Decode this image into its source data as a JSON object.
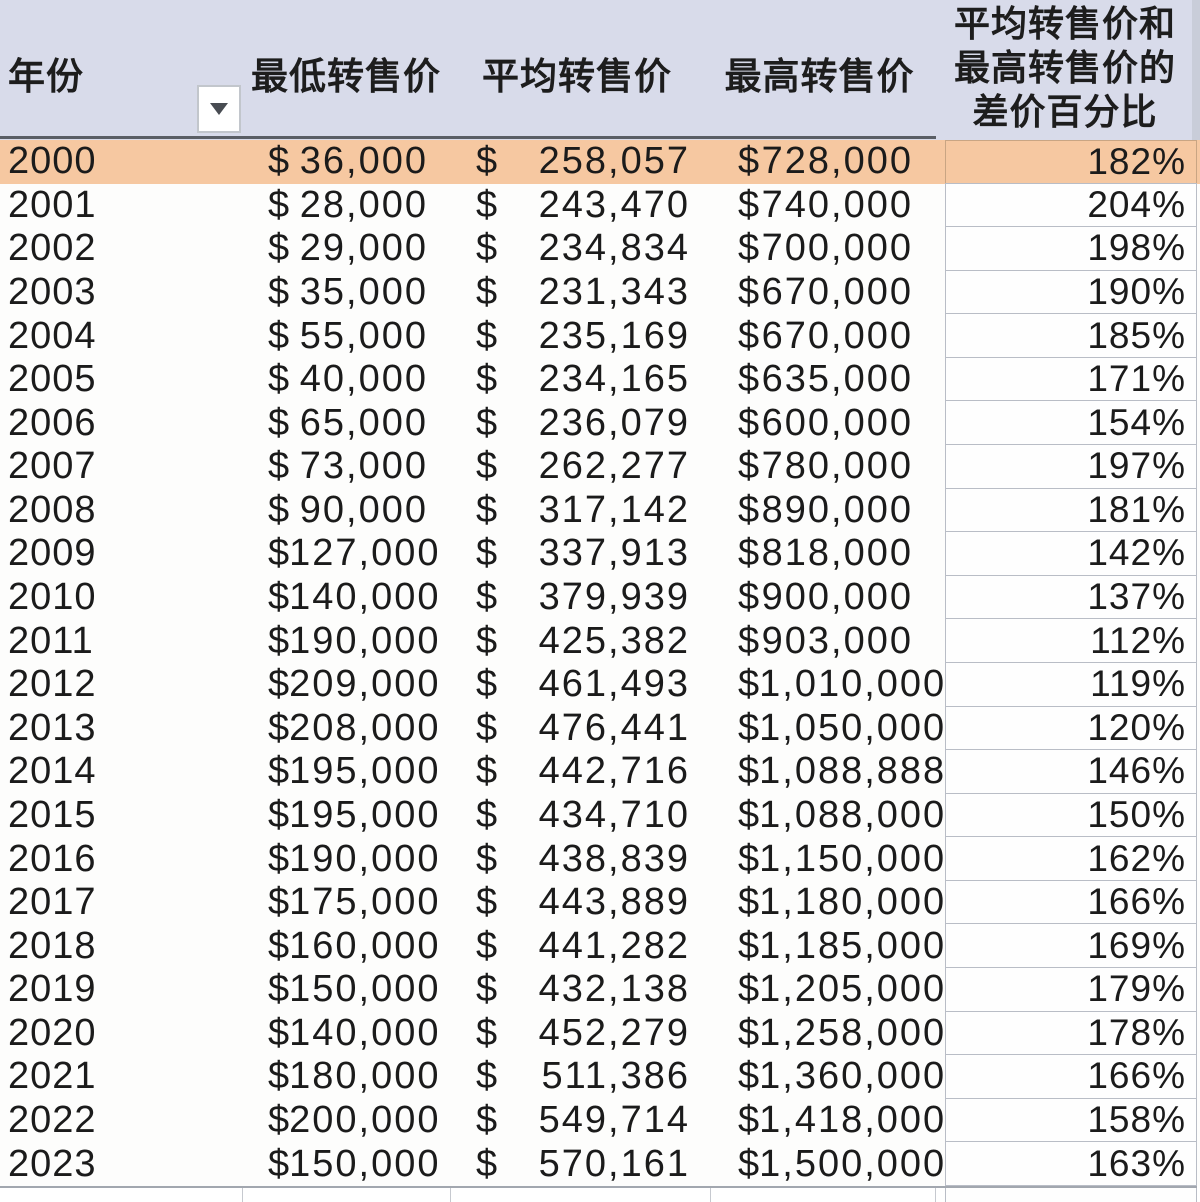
{
  "app": {
    "type": "spreadsheet-table"
  },
  "colors": {
    "header_bg": "#d8dbea",
    "highlight_row_bg": "#f6c8a1",
    "header_underline": "#5a5e65",
    "pct_cell_border": "#b9bdc6",
    "bottom_rule": "#a2a7af",
    "text": "#1b1b1b"
  },
  "icons": {
    "filter_dropdown": "triangle-down"
  },
  "table": {
    "header": {
      "year": "年份",
      "min": "最低转售价",
      "avg": "平均转售价",
      "max": "最高转售价",
      "pct_lines": [
        "平均转售价和",
        "最高转售价的",
        "差价百分比"
      ]
    },
    "currency_symbol": "$",
    "rows": [
      {
        "year": "2000",
        "min": "36,000",
        "avg": "258,057",
        "max": "728,000",
        "pct": "182%",
        "highlight": true
      },
      {
        "year": "2001",
        "min": "28,000",
        "avg": "243,470",
        "max": "740,000",
        "pct": "204%",
        "highlight": false
      },
      {
        "year": "2002",
        "min": "29,000",
        "avg": "234,834",
        "max": "700,000",
        "pct": "198%",
        "highlight": false
      },
      {
        "year": "2003",
        "min": "35,000",
        "avg": "231,343",
        "max": "670,000",
        "pct": "190%",
        "highlight": false
      },
      {
        "year": "2004",
        "min": "55,000",
        "avg": "235,169",
        "max": "670,000",
        "pct": "185%",
        "highlight": false
      },
      {
        "year": "2005",
        "min": "40,000",
        "avg": "234,165",
        "max": "635,000",
        "pct": "171%",
        "highlight": false
      },
      {
        "year": "2006",
        "min": "65,000",
        "avg": "236,079",
        "max": "600,000",
        "pct": "154%",
        "highlight": false
      },
      {
        "year": "2007",
        "min": "73,000",
        "avg": "262,277",
        "max": "780,000",
        "pct": "197%",
        "highlight": false
      },
      {
        "year": "2008",
        "min": "90,000",
        "avg": "317,142",
        "max": "890,000",
        "pct": "181%",
        "highlight": false
      },
      {
        "year": "2009",
        "min": "127,000",
        "avg": "337,913",
        "max": "818,000",
        "pct": "142%",
        "highlight": false
      },
      {
        "year": "2010",
        "min": "140,000",
        "avg": "379,939",
        "max": "900,000",
        "pct": "137%",
        "highlight": false
      },
      {
        "year": "2011",
        "min": "190,000",
        "avg": "425,382",
        "max": "903,000",
        "pct": "112%",
        "highlight": false
      },
      {
        "year": "2012",
        "min": "209,000",
        "avg": "461,493",
        "max": "1,010,000",
        "pct": "119%",
        "highlight": false
      },
      {
        "year": "2013",
        "min": "208,000",
        "avg": "476,441",
        "max": "1,050,000",
        "pct": "120%",
        "highlight": false
      },
      {
        "year": "2014",
        "min": "195,000",
        "avg": "442,716",
        "max": "1,088,888",
        "pct": "146%",
        "highlight": false
      },
      {
        "year": "2015",
        "min": "195,000",
        "avg": "434,710",
        "max": "1,088,000",
        "pct": "150%",
        "highlight": false
      },
      {
        "year": "2016",
        "min": "190,000",
        "avg": "438,839",
        "max": "1,150,000",
        "pct": "162%",
        "highlight": false
      },
      {
        "year": "2017",
        "min": "175,000",
        "avg": "443,889",
        "max": "1,180,000",
        "pct": "166%",
        "highlight": false
      },
      {
        "year": "2018",
        "min": "160,000",
        "avg": "441,282",
        "max": "1,185,000",
        "pct": "169%",
        "highlight": false
      },
      {
        "year": "2019",
        "min": "150,000",
        "avg": "432,138",
        "max": "1,205,000",
        "pct": "179%",
        "highlight": false
      },
      {
        "year": "2020",
        "min": "140,000",
        "avg": "452,279",
        "max": "1,258,000",
        "pct": "178%",
        "highlight": false
      },
      {
        "year": "2021",
        "min": "180,000",
        "avg": "511,386",
        "max": "1,360,000",
        "pct": "166%",
        "highlight": false
      },
      {
        "year": "2022",
        "min": "200,000",
        "avg": "549,714",
        "max": "1,418,000",
        "pct": "158%",
        "highlight": false
      },
      {
        "year": "2023",
        "min": "150,000",
        "avg": "570,161",
        "max": "1,500,000",
        "pct": "163%",
        "highlight": false
      }
    ]
  }
}
